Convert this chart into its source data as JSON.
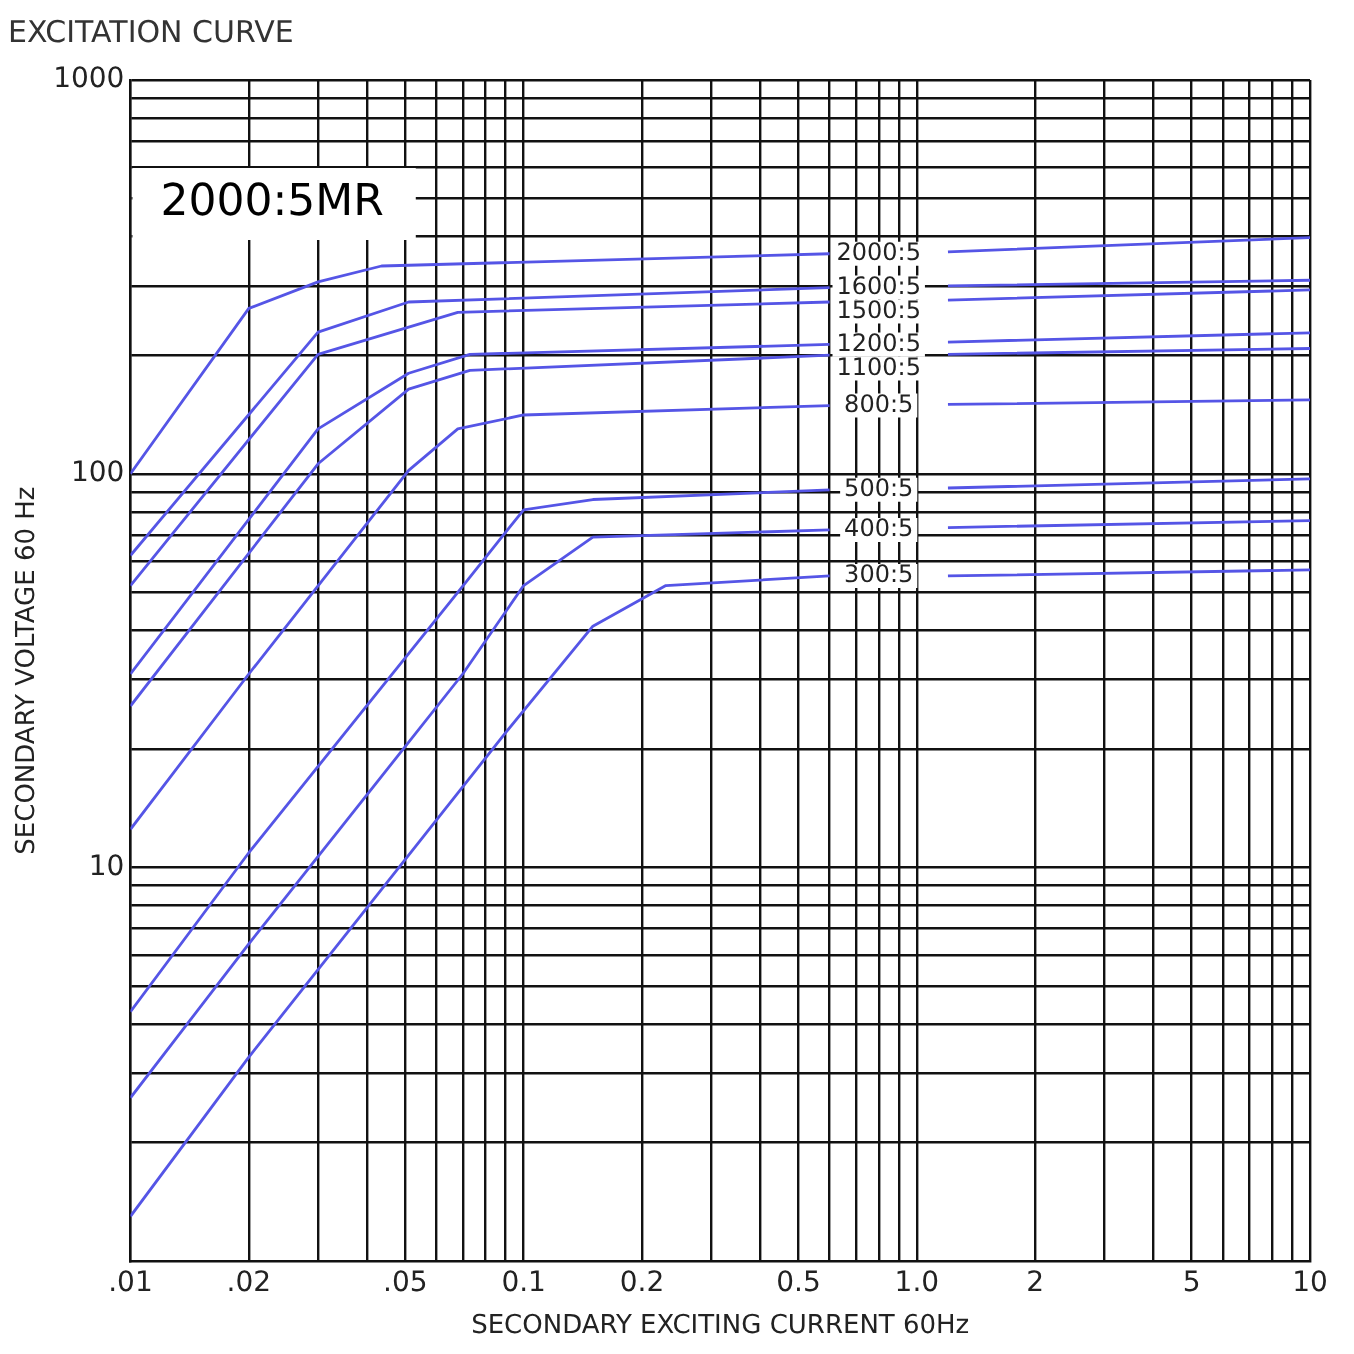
{
  "chart_data": {
    "type": "line",
    "title": "EXCITATION CURVE",
    "xlabel": "SECONDARY EXCITING CURRENT 60Hz",
    "ylabel": "SECONDARY VOLTAGE 60 Hz",
    "annotations": [
      "2000:5MR"
    ],
    "log": "xy",
    "grid": true,
    "legend": false,
    "marker": "none",
    "line_style": "solid",
    "xlim": [
      0.01,
      10
    ],
    "ylim": [
      1,
      1000
    ],
    "xticks": [
      {
        "value": 0.01,
        "label": ".01"
      },
      {
        "value": 0.02,
        "label": ".02"
      },
      {
        "value": 0.03,
        "label": null
      },
      {
        "value": 0.04,
        "label": null
      },
      {
        "value": 0.05,
        "label": ".05"
      },
      {
        "value": 0.06,
        "label": null
      },
      {
        "value": 0.07,
        "label": null
      },
      {
        "value": 0.08,
        "label": null
      },
      {
        "value": 0.09,
        "label": null
      },
      {
        "value": 0.1,
        "label": "0.1"
      },
      {
        "value": 0.2,
        "label": "0.2"
      },
      {
        "value": 0.3,
        "label": null
      },
      {
        "value": 0.4,
        "label": null
      },
      {
        "value": 0.5,
        "label": "0.5"
      },
      {
        "value": 0.6,
        "label": null
      },
      {
        "value": 0.7,
        "label": null
      },
      {
        "value": 0.8,
        "label": null
      },
      {
        "value": 0.9,
        "label": null
      },
      {
        "value": 1,
        "label": "1.0"
      },
      {
        "value": 2,
        "label": "2"
      },
      {
        "value": 3,
        "label": null
      },
      {
        "value": 4,
        "label": null
      },
      {
        "value": 5,
        "label": "5"
      },
      {
        "value": 6,
        "label": null
      },
      {
        "value": 7,
        "label": null
      },
      {
        "value": 8,
        "label": null
      },
      {
        "value": 9,
        "label": null
      },
      {
        "value": 10,
        "label": "10"
      }
    ],
    "yticks": [
      {
        "value": 2,
        "label": null
      },
      {
        "value": 3,
        "label": null
      },
      {
        "value": 4,
        "label": null
      },
      {
        "value": 5,
        "label": null
      },
      {
        "value": 6,
        "label": null
      },
      {
        "value": 7,
        "label": null
      },
      {
        "value": 8,
        "label": null
      },
      {
        "value": 9,
        "label": null
      },
      10,
      {
        "value": 20,
        "label": null
      },
      {
        "value": 30,
        "label": null
      },
      {
        "value": 40,
        "label": null
      },
      {
        "value": 50,
        "label": null
      },
      {
        "value": 60,
        "label": null
      },
      {
        "value": 70,
        "label": null
      },
      {
        "value": 80,
        "label": null
      },
      {
        "value": 90,
        "label": null
      },
      100,
      {
        "value": 200,
        "label": null
      },
      {
        "value": 300,
        "label": null
      },
      {
        "value": 400,
        "label": null
      },
      {
        "value": 500,
        "label": null
      },
      {
        "value": 600,
        "label": null
      },
      {
        "value": 700,
        "label": null
      },
      {
        "value": 800,
        "label": null
      },
      {
        "value": 900,
        "label": null
      },
      1000
    ],
    "series": [
      {
        "name": "2000:5",
        "color": "#5555e6",
        "x": [
          0.01,
          0.02,
          0.03,
          0.0435,
          0.6,
          0.8,
          1.2,
          10
        ],
        "values": [
          100,
          263,
          307,
          337,
          362,
          null,
          366,
          398
        ]
      },
      {
        "name": "1600:5",
        "color": "#5555e6",
        "x": [
          0.01,
          0.03,
          0.051,
          0.6,
          0.8,
          1.2,
          10
        ],
        "values": [
          62,
          229,
          273,
          297,
          null,
          300,
          310
        ]
      },
      {
        "name": "1500:5",
        "color": "#5555e6",
        "x": [
          0.01,
          0.03,
          0.068,
          0.6,
          0.8,
          1.2,
          10
        ],
        "values": [
          52,
          201,
          257,
          273,
          null,
          276,
          293
        ]
      },
      {
        "name": "1200:5",
        "color": "#5555e6",
        "x": [
          0.01,
          0.03,
          0.051,
          0.073,
          0.6,
          0.8,
          1.2,
          10
        ],
        "values": [
          31,
          130,
          180,
          201,
          213,
          null,
          216,
          228
        ]
      },
      {
        "name": "1100:5",
        "color": "#5555e6",
        "x": [
          0.01,
          0.03,
          0.051,
          0.073,
          0.6,
          0.8,
          1.2,
          10
        ],
        "values": [
          25.7,
          106,
          164,
          183,
          200,
          null,
          201,
          208
        ]
      },
      {
        "name": "800:5",
        "color": "#5555e6",
        "x": [
          0.01,
          0.02,
          0.051,
          0.068,
          0.1,
          0.6,
          0.8,
          1.2,
          10
        ],
        "values": [
          12.5,
          31,
          102,
          130,
          141,
          149,
          null,
          150,
          154
        ]
      },
      {
        "name": "500:5",
        "color": "#5555e6",
        "x": [
          0.01,
          0.02,
          0.068,
          0.1,
          0.15,
          0.6,
          0.8,
          1.2,
          10
        ],
        "values": [
          4.3,
          10.9,
          50,
          81,
          86,
          91,
          null,
          92,
          97
        ]
      },
      {
        "name": "400:5",
        "color": "#5555e6",
        "x": [
          0.01,
          0.02,
          0.07,
          0.1,
          0.15,
          0.6,
          0.8,
          1.2,
          10
        ],
        "values": [
          2.6,
          6.4,
          31,
          52,
          69,
          72,
          null,
          73,
          76
        ]
      },
      {
        "name": "300:5",
        "color": "#5555e6",
        "x": [
          0.01,
          0.02,
          0.09,
          0.15,
          0.23,
          0.6,
          0.8,
          1.2,
          10
        ],
        "values": [
          1.3,
          3.3,
          22,
          41,
          52,
          55,
          null,
          55,
          57
        ]
      }
    ]
  }
}
